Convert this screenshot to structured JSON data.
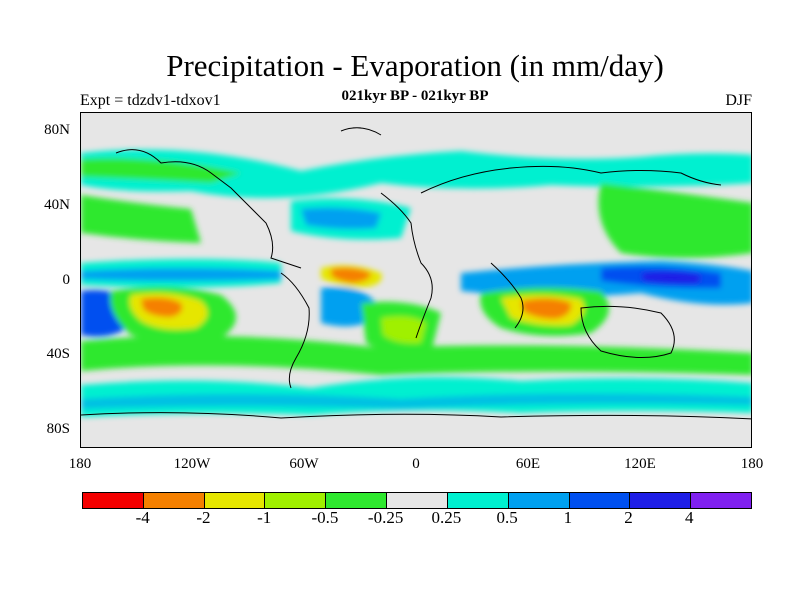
{
  "header": {
    "title": "Precipitation - Evaporation (in mm/day)",
    "subtitle": "021kyr BP - 021kyr BP",
    "expt": "Expt = tdzdv1-tdxov1",
    "season": "DJF"
  },
  "axes": {
    "y_labels": [
      "80N",
      "40N",
      "0",
      "40S",
      "80S"
    ],
    "x_labels": [
      "180",
      "120W",
      "60W",
      "0",
      "60E",
      "120E",
      "180"
    ]
  },
  "colorbar": {
    "colors": [
      "#f40000",
      "#f58000",
      "#e6e600",
      "#a0f000",
      "#2ee82e",
      "#e6e6e6",
      "#00f0d0",
      "#00a0f0",
      "#0050f0",
      "#1e1ee6",
      "#8020f0"
    ],
    "labels": [
      "-4",
      "-2",
      "-1",
      "-0.5",
      "-0.25",
      "0.25",
      "0.5",
      "1",
      "2",
      "4"
    ]
  },
  "palette": {
    "background": "#e6e6e6",
    "coast": "#000000"
  }
}
